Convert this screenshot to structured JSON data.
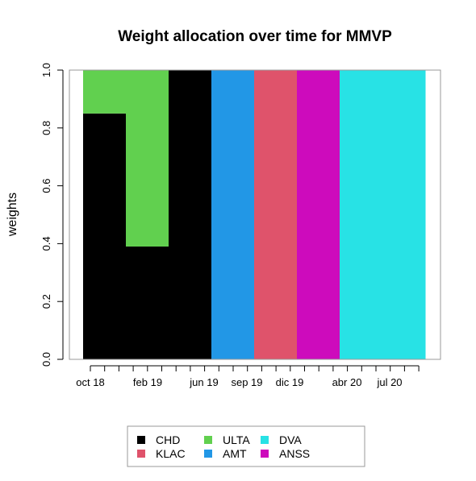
{
  "chart_data": {
    "type": "area",
    "title": "Weight allocation over time for MMVP",
    "xlabel": "",
    "ylabel": "weights",
    "ylim": [
      0,
      1
    ],
    "yticks": [
      "0.0",
      "0.2",
      "0.4",
      "0.6",
      "0.8",
      "1.0"
    ],
    "xtick_labels": [
      "oct 18",
      "feb 19",
      "jun 19",
      "sep 19",
      "dic 19",
      "abr 20",
      "jul 20"
    ],
    "periods": 8,
    "legend_position": "bottom",
    "series": [
      {
        "name": "CHD",
        "color": "#000000",
        "values": [
          0.85,
          0.39,
          1.0,
          0,
          0,
          0,
          0,
          0
        ]
      },
      {
        "name": "KLAC",
        "color": "#DF536B",
        "values": [
          0,
          0,
          0,
          0,
          1.0,
          0,
          0,
          0
        ]
      },
      {
        "name": "ULTA",
        "color": "#61D04F",
        "values": [
          0.15,
          0.61,
          0,
          0,
          0,
          0,
          0,
          0
        ]
      },
      {
        "name": "AMT",
        "color": "#2297E6",
        "values": [
          0,
          0,
          0,
          1.0,
          0,
          0,
          0,
          0
        ]
      },
      {
        "name": "DVA",
        "color": "#28E2E5",
        "values": [
          0,
          0,
          0,
          0,
          0,
          0,
          1.0,
          1.0
        ]
      },
      {
        "name": "ANSS",
        "color": "#CD0BBC",
        "values": [
          0,
          0,
          0,
          0,
          0,
          1.0,
          0,
          0
        ]
      }
    ]
  }
}
